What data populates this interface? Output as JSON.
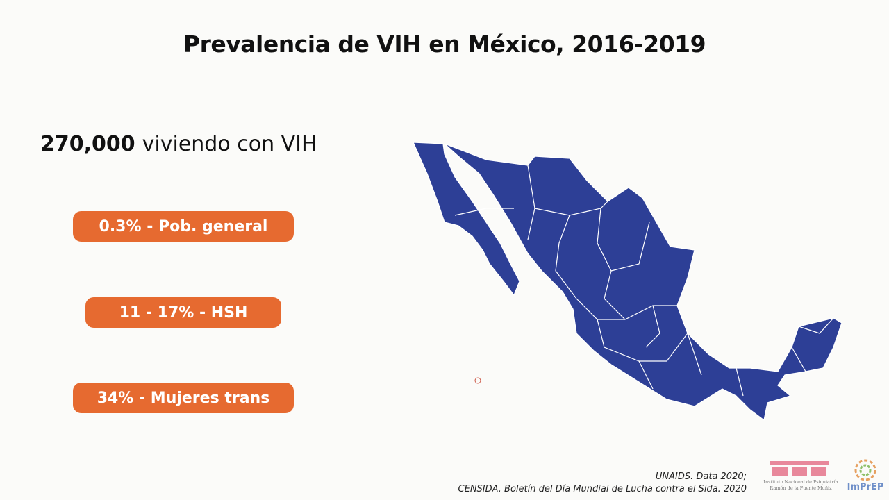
{
  "title": "Prevalencia de VIH en México, 2016-2019",
  "headline": {
    "number": "270,000",
    "text": "viviendo con VIH"
  },
  "pills": [
    "0.3% - Pob. general",
    "11 - 17% - HSH",
    "34% - Mujeres trans"
  ],
  "sources": [
    "UNAIDS. Data 2020;",
    "CENSIDA. Boletín del Día Mundial de Lucha contra el Sida. 2020"
  ],
  "logos": {
    "institute": [
      "Instituto Nacional de Psiquiatría",
      "Ramón de la Fuente Muñiz"
    ],
    "program": "ImPrEP"
  }
}
